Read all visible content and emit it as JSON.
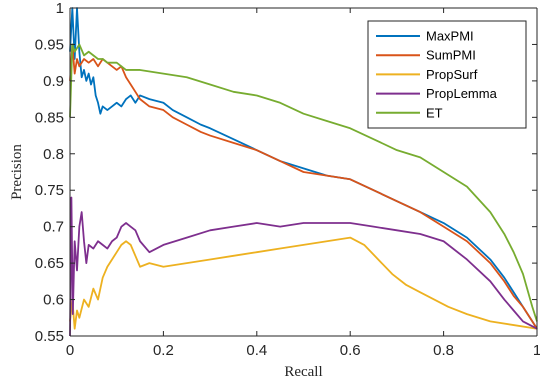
{
  "chart_data": {
    "type": "line",
    "title": "",
    "xlabel": "Recall",
    "ylabel": "Precision",
    "xlim": [
      0,
      1
    ],
    "ylim": [
      0.55,
      1
    ],
    "xticks": [
      0,
      0.2,
      0.4,
      0.6,
      0.8,
      1
    ],
    "xtick_labels": [
      "0",
      "0.2",
      "0.4",
      "0.6",
      "0.8",
      "1"
    ],
    "yticks": [
      0.55,
      0.6,
      0.65,
      0.7,
      0.75,
      0.8,
      0.85,
      0.9,
      0.95,
      1
    ],
    "ytick_labels": [
      "0.55",
      "0.6",
      "0.65",
      "0.7",
      "0.75",
      "0.8",
      "0.85",
      "0.9",
      "0.95",
      "1"
    ],
    "grid": false,
    "legend_position": "top-right",
    "series": [
      {
        "name": "MaxPMI",
        "color": "#0072BD",
        "points": [
          [
            0,
            0.94
          ],
          [
            0.005,
            1.0
          ],
          [
            0.01,
            0.93
          ],
          [
            0.015,
            1.0
          ],
          [
            0.02,
            0.94
          ],
          [
            0.025,
            0.905
          ],
          [
            0.03,
            0.915
          ],
          [
            0.035,
            0.9
          ],
          [
            0.04,
            0.91
          ],
          [
            0.045,
            0.895
          ],
          [
            0.05,
            0.905
          ],
          [
            0.055,
            0.88
          ],
          [
            0.06,
            0.87
          ],
          [
            0.065,
            0.855
          ],
          [
            0.07,
            0.865
          ],
          [
            0.08,
            0.86
          ],
          [
            0.09,
            0.865
          ],
          [
            0.1,
            0.87
          ],
          [
            0.11,
            0.865
          ],
          [
            0.12,
            0.875
          ],
          [
            0.13,
            0.88
          ],
          [
            0.14,
            0.87
          ],
          [
            0.15,
            0.88
          ],
          [
            0.17,
            0.875
          ],
          [
            0.2,
            0.87
          ],
          [
            0.22,
            0.86
          ],
          [
            0.25,
            0.85
          ],
          [
            0.28,
            0.84
          ],
          [
            0.3,
            0.835
          ],
          [
            0.35,
            0.82
          ],
          [
            0.4,
            0.805
          ],
          [
            0.45,
            0.79
          ],
          [
            0.5,
            0.78
          ],
          [
            0.55,
            0.77
          ],
          [
            0.6,
            0.765
          ],
          [
            0.65,
            0.75
          ],
          [
            0.7,
            0.735
          ],
          [
            0.75,
            0.72
          ],
          [
            0.8,
            0.705
          ],
          [
            0.85,
            0.685
          ],
          [
            0.9,
            0.655
          ],
          [
            0.93,
            0.63
          ],
          [
            0.95,
            0.61
          ],
          [
            0.97,
            0.59
          ],
          [
            0.99,
            0.57
          ],
          [
            1.0,
            0.56
          ]
        ]
      },
      {
        "name": "SumPMI",
        "color": "#D95319",
        "points": [
          [
            0,
            0.9
          ],
          [
            0.005,
            0.95
          ],
          [
            0.01,
            0.91
          ],
          [
            0.015,
            0.93
          ],
          [
            0.02,
            0.92
          ],
          [
            0.03,
            0.93
          ],
          [
            0.04,
            0.925
          ],
          [
            0.05,
            0.93
          ],
          [
            0.06,
            0.92
          ],
          [
            0.07,
            0.93
          ],
          [
            0.08,
            0.925
          ],
          [
            0.09,
            0.92
          ],
          [
            0.1,
            0.915
          ],
          [
            0.11,
            0.92
          ],
          [
            0.12,
            0.905
          ],
          [
            0.13,
            0.895
          ],
          [
            0.14,
            0.885
          ],
          [
            0.15,
            0.875
          ],
          [
            0.17,
            0.865
          ],
          [
            0.2,
            0.86
          ],
          [
            0.22,
            0.85
          ],
          [
            0.25,
            0.84
          ],
          [
            0.28,
            0.83
          ],
          [
            0.3,
            0.825
          ],
          [
            0.35,
            0.815
          ],
          [
            0.4,
            0.805
          ],
          [
            0.45,
            0.79
          ],
          [
            0.5,
            0.775
          ],
          [
            0.55,
            0.77
          ],
          [
            0.6,
            0.765
          ],
          [
            0.65,
            0.75
          ],
          [
            0.7,
            0.735
          ],
          [
            0.75,
            0.72
          ],
          [
            0.8,
            0.7
          ],
          [
            0.85,
            0.68
          ],
          [
            0.9,
            0.65
          ],
          [
            0.93,
            0.625
          ],
          [
            0.95,
            0.605
          ],
          [
            0.97,
            0.59
          ],
          [
            0.99,
            0.57
          ],
          [
            1.0,
            0.56
          ]
        ]
      },
      {
        "name": "PropSurf",
        "color": "#EDB120",
        "points": [
          [
            0,
            0.57
          ],
          [
            0.005,
            0.6
          ],
          [
            0.01,
            0.56
          ],
          [
            0.015,
            0.585
          ],
          [
            0.02,
            0.575
          ],
          [
            0.03,
            0.6
          ],
          [
            0.04,
            0.59
          ],
          [
            0.05,
            0.615
          ],
          [
            0.06,
            0.6
          ],
          [
            0.07,
            0.63
          ],
          [
            0.08,
            0.645
          ],
          [
            0.09,
            0.655
          ],
          [
            0.1,
            0.665
          ],
          [
            0.11,
            0.675
          ],
          [
            0.12,
            0.68
          ],
          [
            0.13,
            0.675
          ],
          [
            0.14,
            0.66
          ],
          [
            0.15,
            0.645
          ],
          [
            0.17,
            0.65
          ],
          [
            0.2,
            0.645
          ],
          [
            0.25,
            0.65
          ],
          [
            0.3,
            0.655
          ],
          [
            0.35,
            0.66
          ],
          [
            0.4,
            0.665
          ],
          [
            0.45,
            0.67
          ],
          [
            0.5,
            0.675
          ],
          [
            0.55,
            0.68
          ],
          [
            0.6,
            0.685
          ],
          [
            0.63,
            0.675
          ],
          [
            0.66,
            0.655
          ],
          [
            0.69,
            0.635
          ],
          [
            0.72,
            0.62
          ],
          [
            0.75,
            0.61
          ],
          [
            0.78,
            0.6
          ],
          [
            0.81,
            0.59
          ],
          [
            0.85,
            0.58
          ],
          [
            0.9,
            0.57
          ],
          [
            0.95,
            0.565
          ],
          [
            1.0,
            0.56
          ]
        ]
      },
      {
        "name": "PropLemma",
        "color": "#7E2F8E",
        "points": [
          [
            0,
            0.55
          ],
          [
            0.003,
            0.74
          ],
          [
            0.006,
            0.58
          ],
          [
            0.01,
            0.68
          ],
          [
            0.015,
            0.64
          ],
          [
            0.02,
            0.7
          ],
          [
            0.025,
            0.72
          ],
          [
            0.03,
            0.68
          ],
          [
            0.035,
            0.65
          ],
          [
            0.04,
            0.675
          ],
          [
            0.05,
            0.67
          ],
          [
            0.06,
            0.68
          ],
          [
            0.07,
            0.675
          ],
          [
            0.08,
            0.67
          ],
          [
            0.09,
            0.68
          ],
          [
            0.1,
            0.685
          ],
          [
            0.11,
            0.7
          ],
          [
            0.12,
            0.705
          ],
          [
            0.13,
            0.7
          ],
          [
            0.14,
            0.695
          ],
          [
            0.15,
            0.68
          ],
          [
            0.17,
            0.665
          ],
          [
            0.2,
            0.675
          ],
          [
            0.25,
            0.685
          ],
          [
            0.3,
            0.695
          ],
          [
            0.35,
            0.7
          ],
          [
            0.4,
            0.705
          ],
          [
            0.45,
            0.7
          ],
          [
            0.5,
            0.705
          ],
          [
            0.55,
            0.705
          ],
          [
            0.6,
            0.705
          ],
          [
            0.65,
            0.7
          ],
          [
            0.7,
            0.695
          ],
          [
            0.75,
            0.69
          ],
          [
            0.8,
            0.68
          ],
          [
            0.85,
            0.655
          ],
          [
            0.9,
            0.625
          ],
          [
            0.93,
            0.6
          ],
          [
            0.95,
            0.585
          ],
          [
            0.97,
            0.57
          ],
          [
            1.0,
            0.56
          ]
        ]
      },
      {
        "name": "ET",
        "color": "#77AC30",
        "points": [
          [
            0,
            0.85
          ],
          [
            0.005,
            0.95
          ],
          [
            0.01,
            0.94
          ],
          [
            0.02,
            0.95
          ],
          [
            0.03,
            0.935
          ],
          [
            0.04,
            0.94
          ],
          [
            0.05,
            0.935
          ],
          [
            0.06,
            0.93
          ],
          [
            0.07,
            0.93
          ],
          [
            0.08,
            0.925
          ],
          [
            0.1,
            0.925
          ],
          [
            0.12,
            0.915
          ],
          [
            0.15,
            0.915
          ],
          [
            0.2,
            0.91
          ],
          [
            0.25,
            0.905
          ],
          [
            0.3,
            0.895
          ],
          [
            0.35,
            0.885
          ],
          [
            0.4,
            0.88
          ],
          [
            0.45,
            0.87
          ],
          [
            0.5,
            0.855
          ],
          [
            0.55,
            0.845
          ],
          [
            0.6,
            0.835
          ],
          [
            0.65,
            0.82
          ],
          [
            0.7,
            0.805
          ],
          [
            0.75,
            0.795
          ],
          [
            0.8,
            0.775
          ],
          [
            0.85,
            0.755
          ],
          [
            0.9,
            0.72
          ],
          [
            0.93,
            0.69
          ],
          [
            0.95,
            0.665
          ],
          [
            0.97,
            0.635
          ],
          [
            0.99,
            0.59
          ],
          [
            1.0,
            0.57
          ]
        ]
      }
    ]
  }
}
